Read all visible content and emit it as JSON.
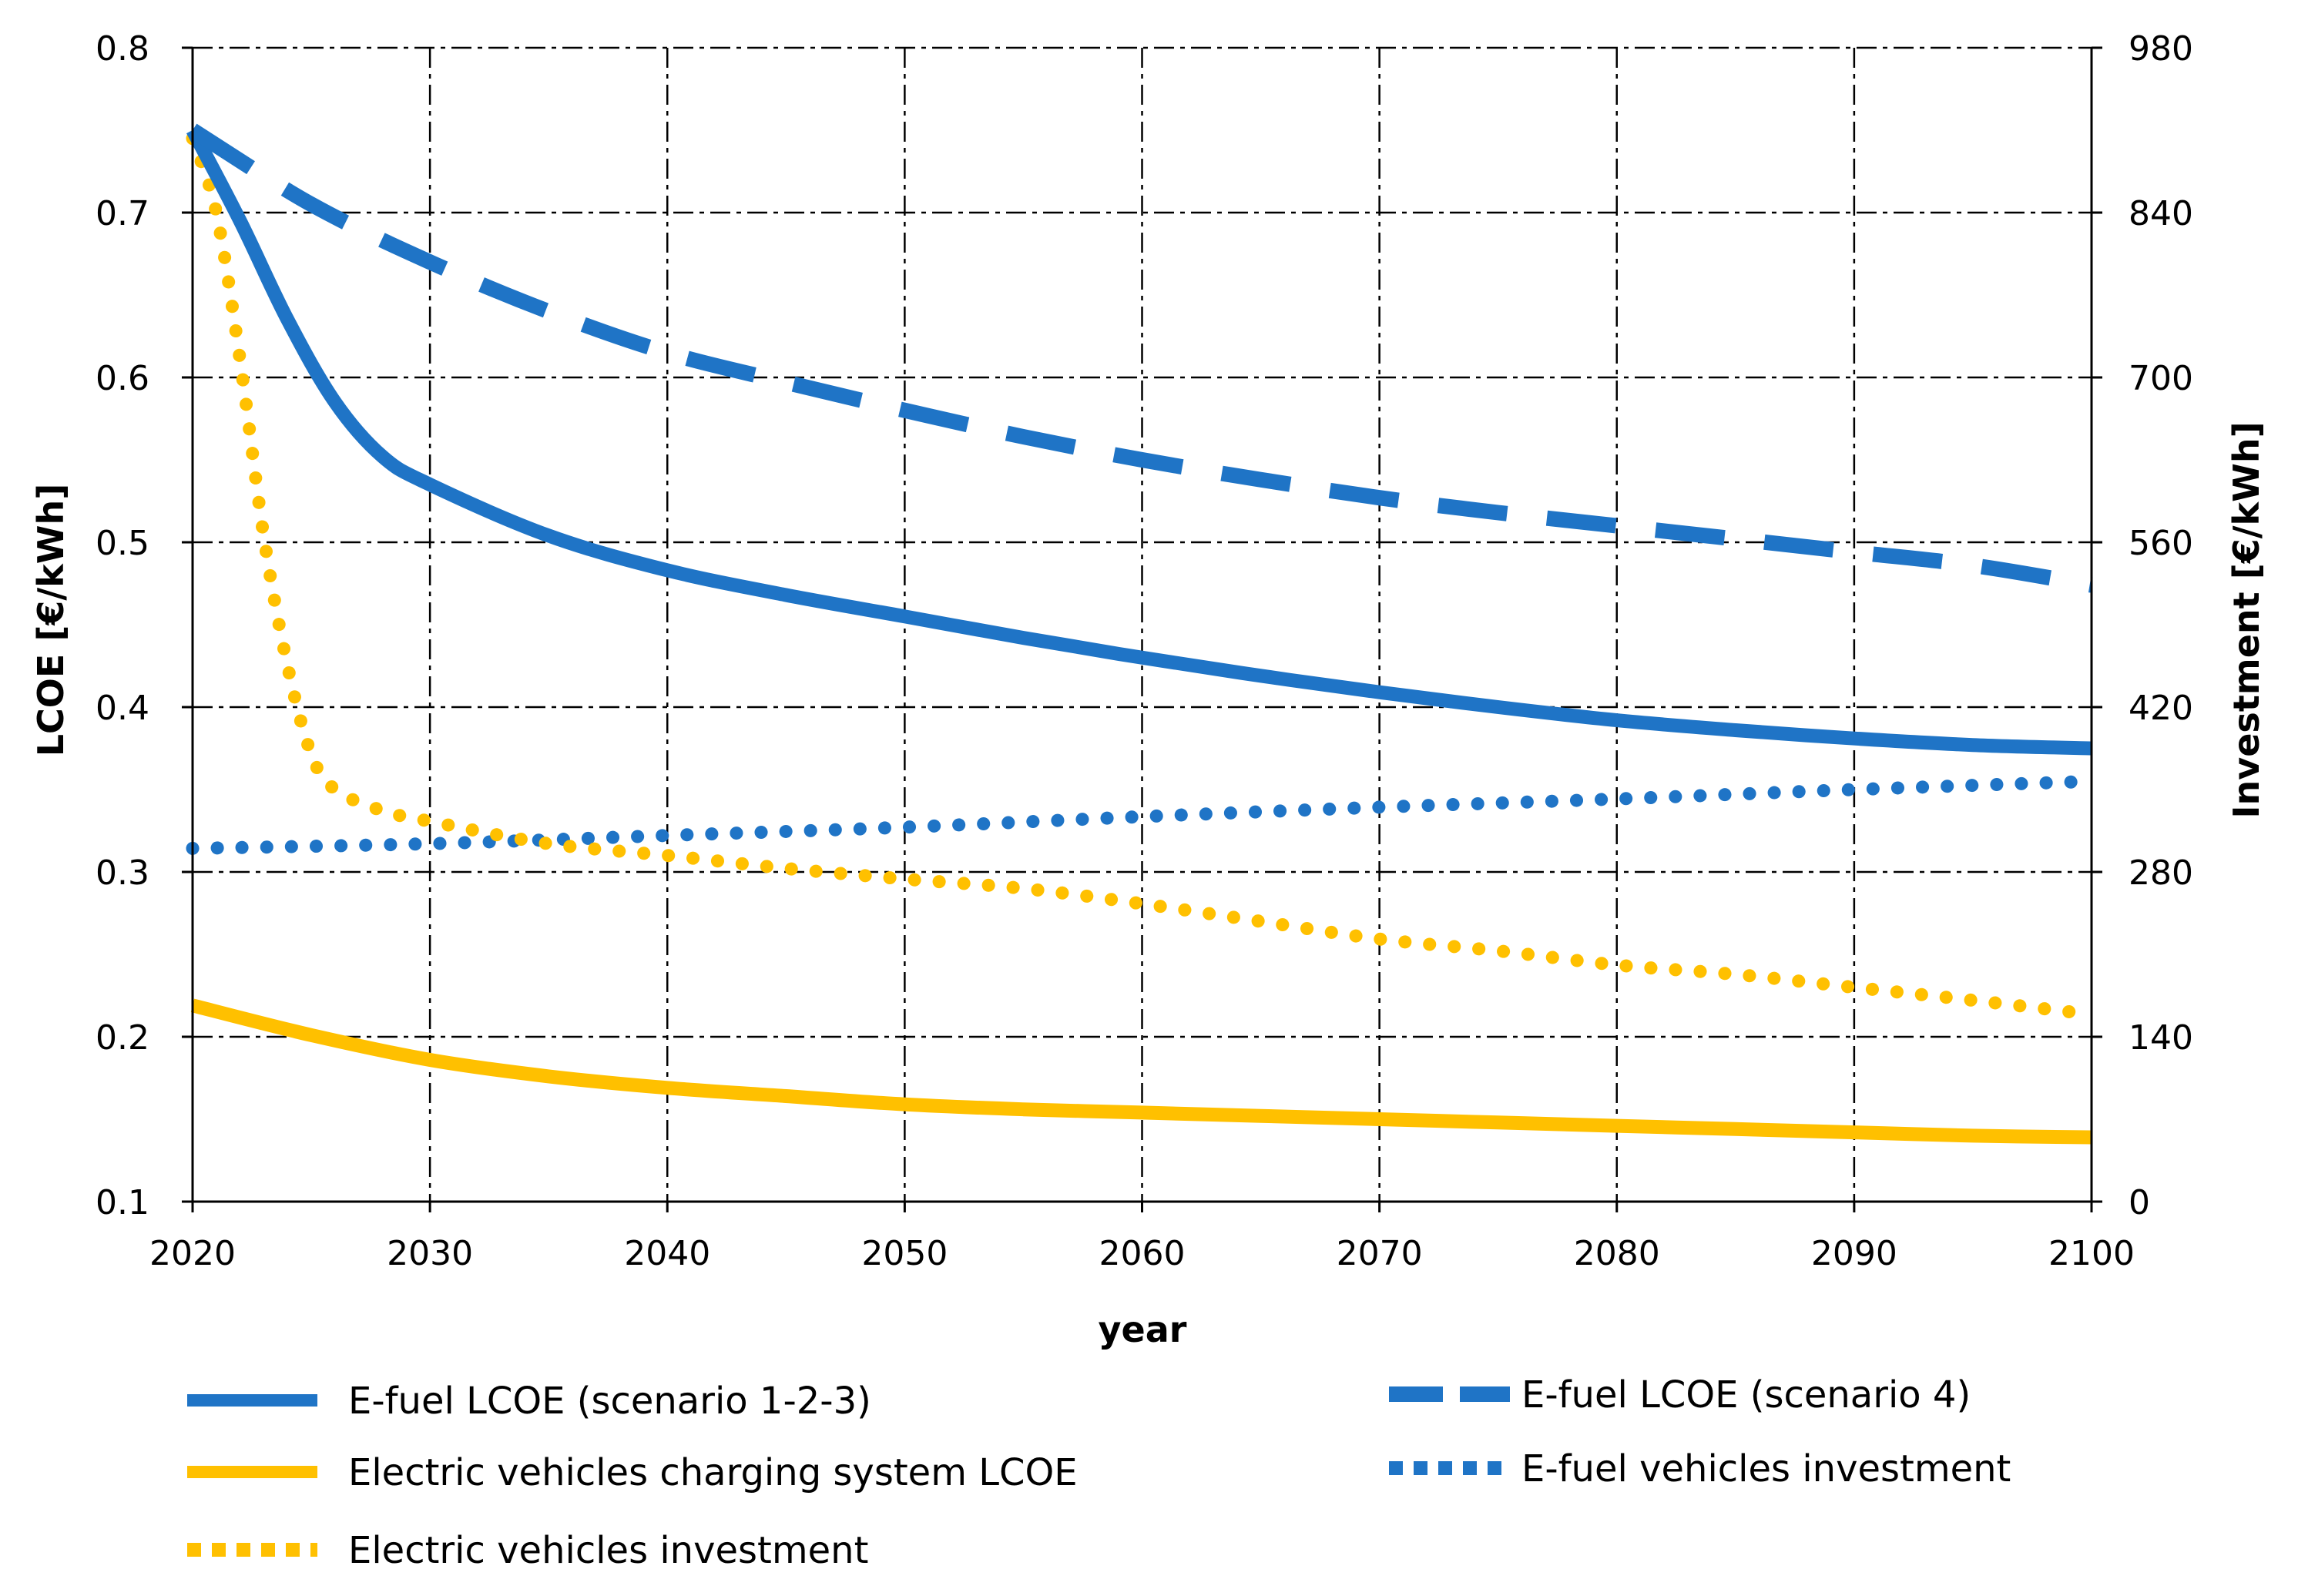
{
  "chart_data": {
    "type": "line",
    "title": "",
    "xlabel": "year",
    "ylabel": "LCOE [€/kWh]",
    "y2label": "Investment [€/kWh]",
    "xlim": [
      2020,
      2100
    ],
    "ylim": [
      0.1,
      0.8
    ],
    "y2lim": [
      0,
      980
    ],
    "xticks": [
      "2020",
      "2030",
      "2040",
      "2050",
      "2060",
      "2070",
      "2080",
      "2090",
      "2100"
    ],
    "yticks": [
      "0.1",
      "0.2",
      "0.3",
      "0.4",
      "0.5",
      "0.6",
      "0.7",
      "0.8"
    ],
    "y2ticks": [
      "0",
      "140",
      "280",
      "420",
      "560",
      "700",
      "840",
      "980"
    ],
    "grid": true,
    "legend_position": "bottom",
    "colors": {
      "blue": "#1f74c6",
      "yellow": "#ffc000"
    },
    "series": [
      {
        "name": "E-fuel LCOE (scenario 1-2-3)",
        "axis": "left",
        "color": "blue",
        "style": "solid",
        "x": [
          2020,
          2022,
          2024,
          2026,
          2028,
          2030,
          2035,
          2040,
          2045,
          2050,
          2055,
          2060,
          2065,
          2070,
          2075,
          2080,
          2085,
          2090,
          2095,
          2100
        ],
        "values": [
          0.75,
          0.695,
          0.635,
          0.585,
          0.552,
          0.535,
          0.504,
          0.483,
          0.468,
          0.455,
          0.442,
          0.43,
          0.419,
          0.409,
          0.4,
          0.392,
          0.386,
          0.381,
          0.377,
          0.375
        ]
      },
      {
        "name": "E-fuel LCOE (scenario 4)",
        "axis": "left",
        "color": "blue",
        "style": "dashed",
        "x": [
          2020,
          2025,
          2030,
          2035,
          2040,
          2045,
          2050,
          2055,
          2060,
          2065,
          2070,
          2075,
          2080,
          2085,
          2090,
          2095,
          2100
        ],
        "values": [
          0.75,
          0.705,
          0.67,
          0.64,
          0.615,
          0.597,
          0.58,
          0.564,
          0.55,
          0.538,
          0.527,
          0.518,
          0.51,
          0.502,
          0.494,
          0.486,
          0.474
        ]
      },
      {
        "name": "Electric vehicles charging system LCOE",
        "axis": "left",
        "color": "yellow",
        "style": "solid",
        "x": [
          2020,
          2025,
          2030,
          2035,
          2040,
          2045,
          2050,
          2055,
          2060,
          2065,
          2070,
          2075,
          2080,
          2085,
          2090,
          2095,
          2100
        ],
        "values": [
          0.219,
          0.201,
          0.186,
          0.176,
          0.169,
          0.164,
          0.159,
          0.156,
          0.154,
          0.152,
          0.15,
          0.148,
          0.146,
          0.144,
          0.142,
          0.14,
          0.139
        ]
      },
      {
        "name": "E-fuel vehicles investment",
        "axis": "right",
        "color": "blue",
        "style": "dotted",
        "x": [
          2020,
          2030,
          2040,
          2050,
          2060,
          2070,
          2080,
          2090,
          2100
        ],
        "values": [
          300,
          304,
          311,
          318,
          327,
          335,
          342,
          350,
          357
        ]
      },
      {
        "name": "Electric vehicles investment",
        "axis": "right",
        "color": "yellow",
        "style": "dotted",
        "x": [
          2020,
          2021,
          2022,
          2023,
          2024,
          2025,
          2026,
          2028,
          2030,
          2035,
          2040,
          2045,
          2050,
          2055,
          2060,
          2065,
          2070,
          2075,
          2080,
          2085,
          2090,
          2095,
          2100
        ],
        "values": [
          903,
          840,
          715,
          565,
          455,
          380,
          350,
          332,
          323,
          304,
          294,
          283,
          274,
          266,
          253,
          238,
          223,
          213,
          201,
          193,
          182,
          171,
          159
        ]
      }
    ]
  },
  "legend": [
    {
      "label": "E-fuel LCOE (scenario 1-2-3)",
      "color": "blue",
      "style": "solid"
    },
    {
      "label": "Electric vehicles charging system LCOE",
      "color": "yellow",
      "style": "solid"
    },
    {
      "label": "Electric vehicles investment",
      "color": "yellow",
      "style": "dotted"
    },
    {
      "label": "E-fuel LCOE (scenario 4)",
      "color": "blue",
      "style": "dashed"
    },
    {
      "label": "E-fuel vehicles investment",
      "color": "blue",
      "style": "dotted"
    }
  ]
}
